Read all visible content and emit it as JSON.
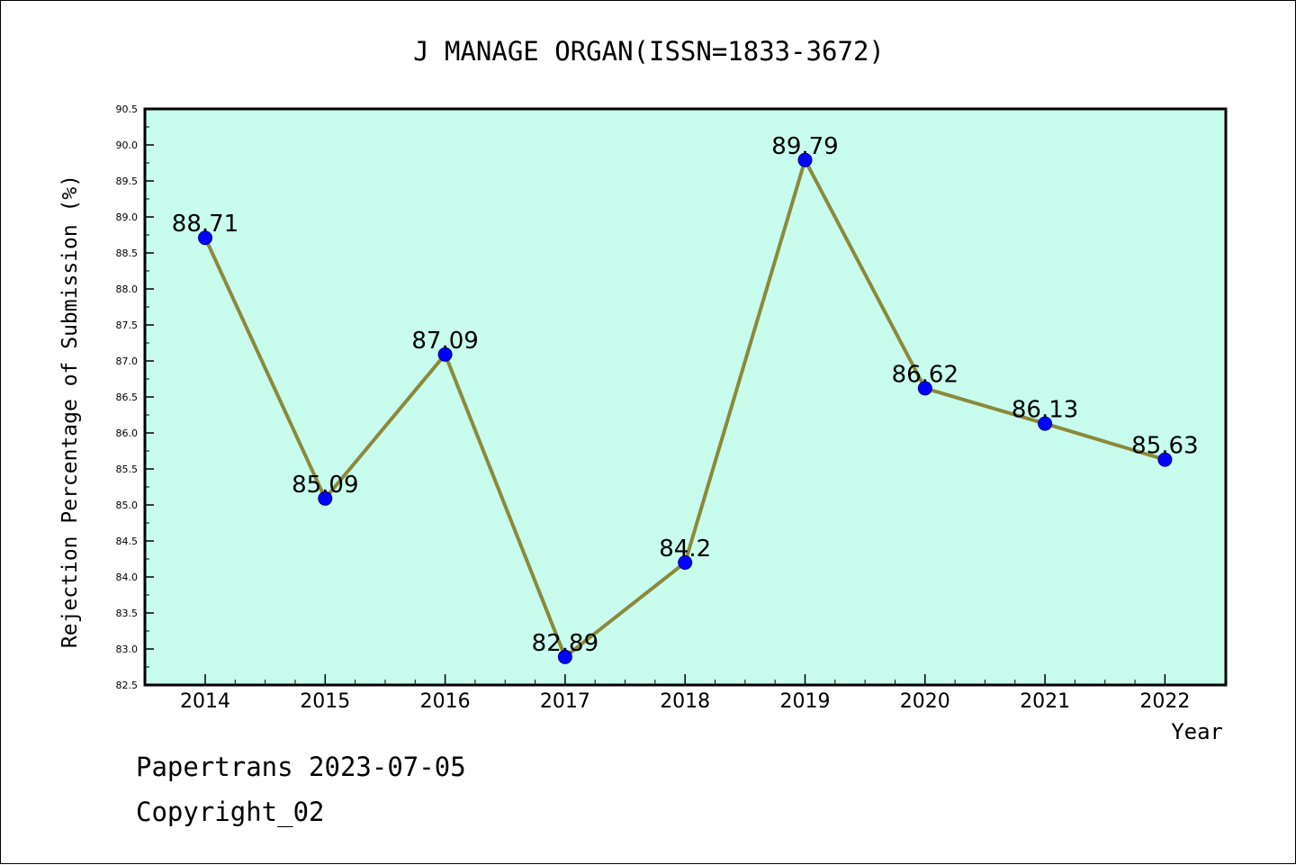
{
  "chart_data": {
    "type": "line",
    "title": "J MANAGE ORGAN(ISSN=1833-3672)",
    "xlabel": "Year",
    "ylabel": "Rejection Percentage of Submission (%)",
    "categories": [
      "2014",
      "2015",
      "2016",
      "2017",
      "2018",
      "2019",
      "2020",
      "2021",
      "2022"
    ],
    "values": [
      88.71,
      85.09,
      87.09,
      82.89,
      84.2,
      89.79,
      86.62,
      86.13,
      85.63
    ],
    "data_labels": [
      "88.71",
      "85.09",
      "87.09",
      "82.89",
      "84.2",
      "89.79",
      "86.62",
      "86.13",
      "85.63"
    ],
    "ylim": [
      82.5,
      90.5
    ],
    "yticks": [
      "82.5",
      "83.0",
      "83.5",
      "84.0",
      "84.5",
      "85.0",
      "85.5",
      "86.0",
      "86.5",
      "87.0",
      "87.5",
      "88.0",
      "88.5",
      "89.0",
      "89.5",
      "90.0",
      "90.5"
    ],
    "grid": false,
    "legend": "none",
    "colors": {
      "plot_background": "#c8fdee",
      "line": "#8b8a3a",
      "marker": "#0000ff",
      "axis": "#000000"
    }
  },
  "footer": {
    "line1": "Papertrans 2023-07-05",
    "line2": "Copyright_02"
  }
}
